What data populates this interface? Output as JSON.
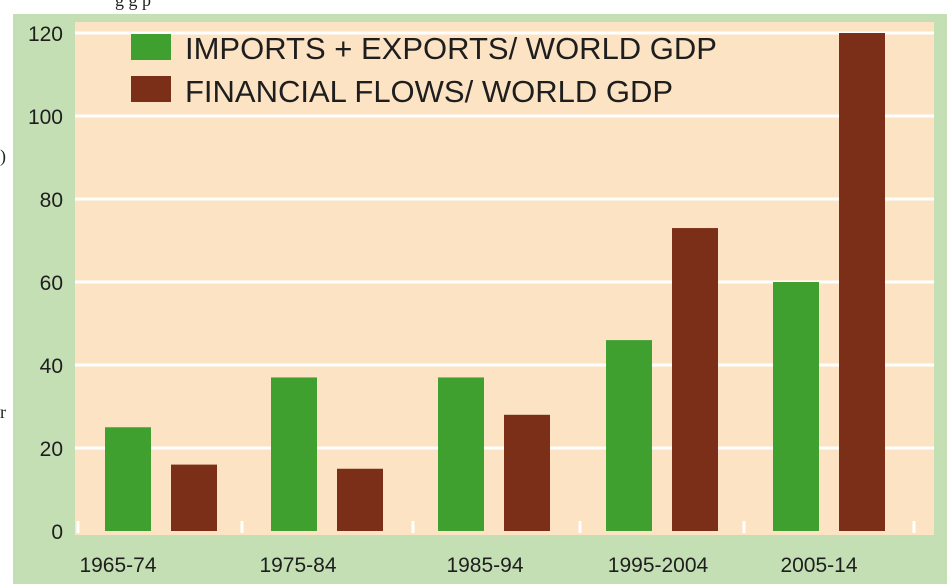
{
  "caption_fragment": "g                                    g p",
  "side_glyphs": [
    ")",
    "r"
  ],
  "chart_data": {
    "type": "bar",
    "title": "",
    "xlabel": "",
    "ylabel": "",
    "categories": [
      "1965-74",
      "1975-84",
      "1985-94",
      "1995-2004",
      "2005-14"
    ],
    "series": [
      {
        "name": "IMPORTS + EXPORTS/ WORLD GDP",
        "color": "#3f9f2f",
        "values": [
          25,
          37,
          37,
          46,
          60
        ]
      },
      {
        "name": "FINANCIAL FLOWS/ WORLD GDP",
        "color": "#7b2e18",
        "values": [
          16,
          15,
          28,
          73,
          120
        ]
      }
    ],
    "ylim": [
      0,
      120
    ],
    "yticks": [
      0,
      20,
      40,
      60,
      80,
      100,
      120
    ],
    "grid": true,
    "legend_position": "top-center",
    "plot_background": "#fce3c4",
    "frame_color": "#c4dfb4",
    "grid_color": "#ffffff"
  }
}
